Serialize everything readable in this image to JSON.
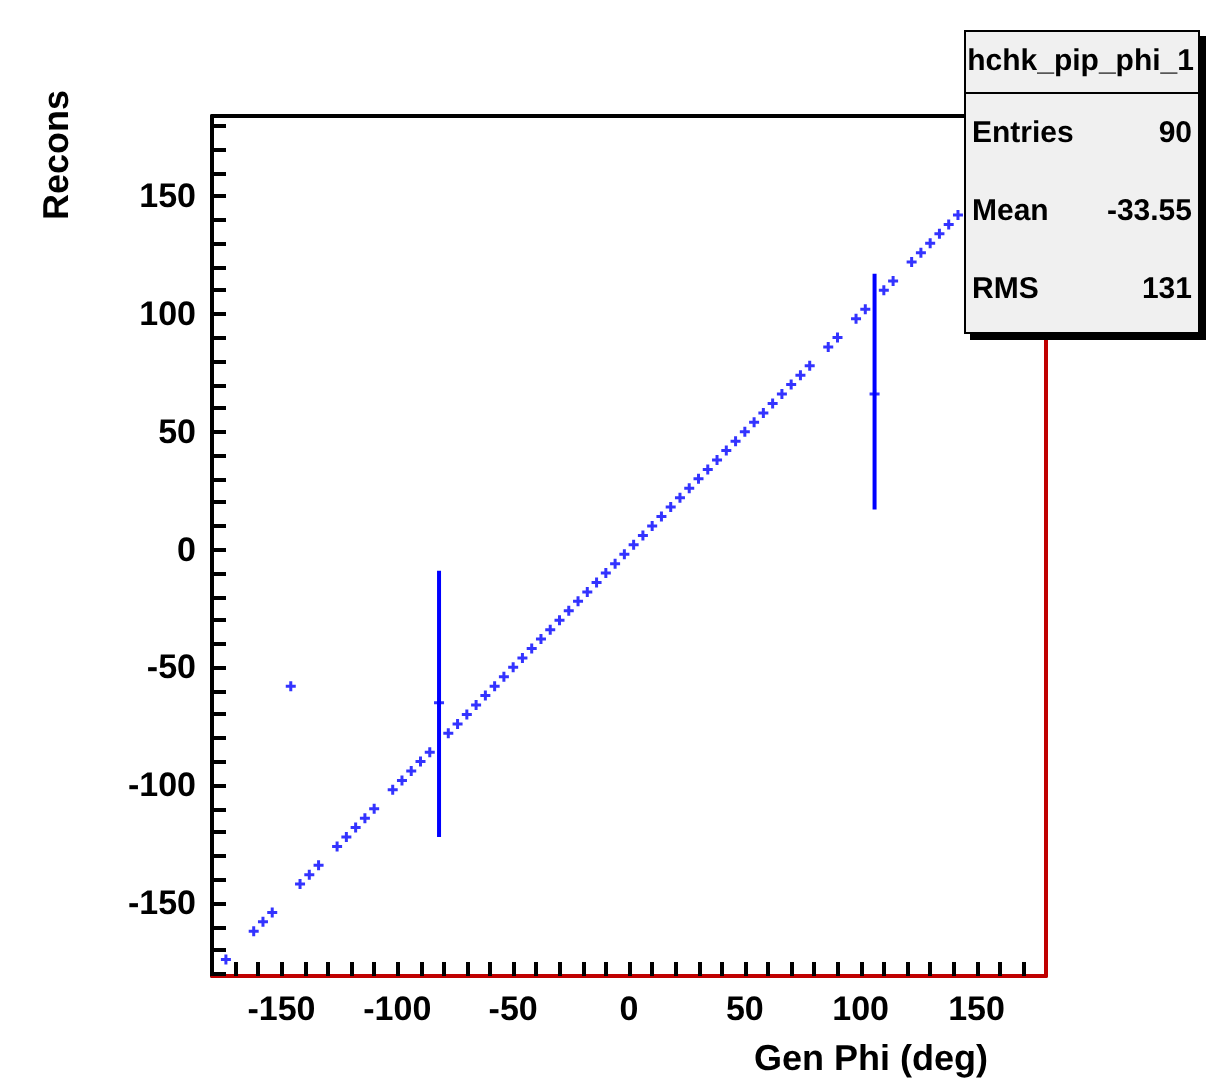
{
  "chart_data": {
    "type": "scatter",
    "xlabel": "Gen Phi (deg)",
    "ylabel": "Recons",
    "annotations": [
      "hchk_pip_phi_1",
      "Entries",
      "90",
      "Mean",
      "-33.55",
      "RMS",
      "131"
    ],
    "xlim": [
      -180,
      180
    ],
    "ylim": [
      -181,
      184
    ],
    "xticks": [
      {
        "value": -180,
        "label": null
      },
      {
        "value": -170,
        "label": null
      },
      {
        "value": -160,
        "label": null
      },
      -150,
      {
        "value": -140,
        "label": null
      },
      {
        "value": -130,
        "label": null
      },
      {
        "value": -120,
        "label": null
      },
      {
        "value": -110,
        "label": null
      },
      -100,
      {
        "value": -90,
        "label": null
      },
      {
        "value": -80,
        "label": null
      },
      {
        "value": -70,
        "label": null
      },
      {
        "value": -60,
        "label": null
      },
      -50,
      {
        "value": -40,
        "label": null
      },
      {
        "value": -30,
        "label": null
      },
      {
        "value": -20,
        "label": null
      },
      {
        "value": -10,
        "label": null
      },
      0,
      {
        "value": 10,
        "label": null
      },
      {
        "value": 20,
        "label": null
      },
      {
        "value": 30,
        "label": null
      },
      {
        "value": 40,
        "label": null
      },
      50,
      {
        "value": 60,
        "label": null
      },
      {
        "value": 70,
        "label": null
      },
      {
        "value": 80,
        "label": null
      },
      {
        "value": 90,
        "label": null
      },
      100,
      {
        "value": 110,
        "label": null
      },
      {
        "value": 120,
        "label": null
      },
      {
        "value": 130,
        "label": null
      },
      {
        "value": 140,
        "label": null
      },
      150,
      {
        "value": 160,
        "label": null
      },
      {
        "value": 170,
        "label": null
      }
    ],
    "yticks": [
      {
        "value": -180,
        "label": null
      },
      {
        "value": -170,
        "label": null
      },
      {
        "value": -160,
        "label": null
      },
      -150,
      {
        "value": -140,
        "label": null
      },
      {
        "value": -130,
        "label": null
      },
      {
        "value": -120,
        "label": null
      },
      {
        "value": -110,
        "label": null
      },
      -100,
      {
        "value": -90,
        "label": null
      },
      {
        "value": -80,
        "label": null
      },
      {
        "value": -70,
        "label": null
      },
      {
        "value": -60,
        "label": null
      },
      -50,
      {
        "value": -40,
        "label": null
      },
      {
        "value": -30,
        "label": null
      },
      {
        "value": -20,
        "label": null
      },
      {
        "value": -10,
        "label": null
      },
      0,
      {
        "value": 10,
        "label": null
      },
      {
        "value": 20,
        "label": null
      },
      {
        "value": 30,
        "label": null
      },
      {
        "value": 40,
        "label": null
      },
      50,
      {
        "value": 60,
        "label": null
      },
      {
        "value": 70,
        "label": null
      },
      {
        "value": 80,
        "label": null
      },
      {
        "value": 90,
        "label": null
      },
      100,
      {
        "value": 110,
        "label": null
      },
      {
        "value": 120,
        "label": null
      },
      {
        "value": 130,
        "label": null
      },
      {
        "value": 140,
        "label": null
      },
      150,
      {
        "value": 160,
        "label": null
      },
      {
        "value": 170,
        "label": null
      },
      {
        "value": 180,
        "label": null
      }
    ],
    "grid": false,
    "marker": "cross",
    "series": [
      {
        "color": "#0000ff",
        "x": [
          -174,
          -162,
          -158,
          -154,
          -146,
          -142,
          -138,
          -134,
          -126,
          -122,
          -118,
          -114,
          -110,
          -102,
          -98,
          -94,
          -90,
          -86,
          -82,
          -78,
          -74,
          -70,
          -66,
          -62,
          -58,
          -54,
          -50,
          -46,
          -42,
          -38,
          -34,
          -30,
          -26,
          -22,
          -18,
          -14,
          -10,
          -6,
          -2,
          2,
          6,
          10,
          14,
          18,
          22,
          26,
          30,
          34,
          38,
          42,
          46,
          50,
          54,
          58,
          62,
          66,
          70,
          74,
          78,
          86,
          90,
          98,
          102,
          106,
          110,
          114,
          122,
          126,
          130,
          134,
          138,
          142
        ],
        "values": [
          -174,
          -162,
          -158,
          -154,
          -58,
          -142,
          -138,
          -134,
          -126,
          -122,
          -118,
          -114,
          -110,
          -102,
          -98,
          -94,
          -90,
          -86,
          -65,
          -78,
          -74,
          -70,
          -66,
          -62,
          -58,
          -54,
          -50,
          -46,
          -42,
          -38,
          -34,
          -30,
          -26,
          -22,
          -18,
          -14,
          -10,
          -6,
          -2,
          2,
          6,
          10,
          14,
          18,
          22,
          26,
          30,
          34,
          38,
          42,
          46,
          50,
          54,
          58,
          62,
          66,
          70,
          74,
          78,
          86,
          90,
          98,
          102,
          66,
          110,
          114,
          122,
          126,
          130,
          134,
          138,
          142
        ],
        "errors": [
          null,
          null,
          null,
          null,
          null,
          null,
          null,
          null,
          null,
          null,
          null,
          null,
          null,
          null,
          null,
          null,
          null,
          null,
          [
            -122,
            -9
          ],
          null,
          null,
          null,
          null,
          null,
          null,
          null,
          null,
          null,
          null,
          null,
          null,
          null,
          null,
          null,
          null,
          null,
          null,
          null,
          null,
          null,
          null,
          null,
          null,
          null,
          null,
          null,
          null,
          null,
          null,
          null,
          null,
          null,
          null,
          null,
          null,
          null,
          null,
          null,
          null,
          null,
          null,
          null,
          null,
          [
            17,
            117
          ],
          null,
          null,
          null,
          null,
          null,
          null,
          null,
          null
        ]
      }
    ]
  }
}
